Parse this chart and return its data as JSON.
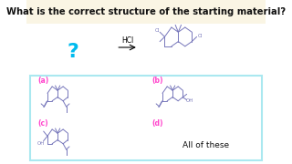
{
  "title": "What is the correct structure of the starting material?",
  "title_bg": "#faf5e4",
  "title_fontsize": 7.2,
  "question_mark": "?",
  "question_mark_color": "#00bbee",
  "hcl_label": "HCl",
  "answer_box_color": "#aae8f0",
  "option_label_color": "#ff44cc",
  "option_a": "(a)",
  "option_b": "(b)",
  "option_c": "(c)",
  "option_d": "(d)",
  "option_d_text": "All of these",
  "bg_color": "#ffffff",
  "line_color": "#7777bb",
  "text_color": "#111111",
  "cl_color": "#7777bb",
  "oh_color": "#7777bb"
}
